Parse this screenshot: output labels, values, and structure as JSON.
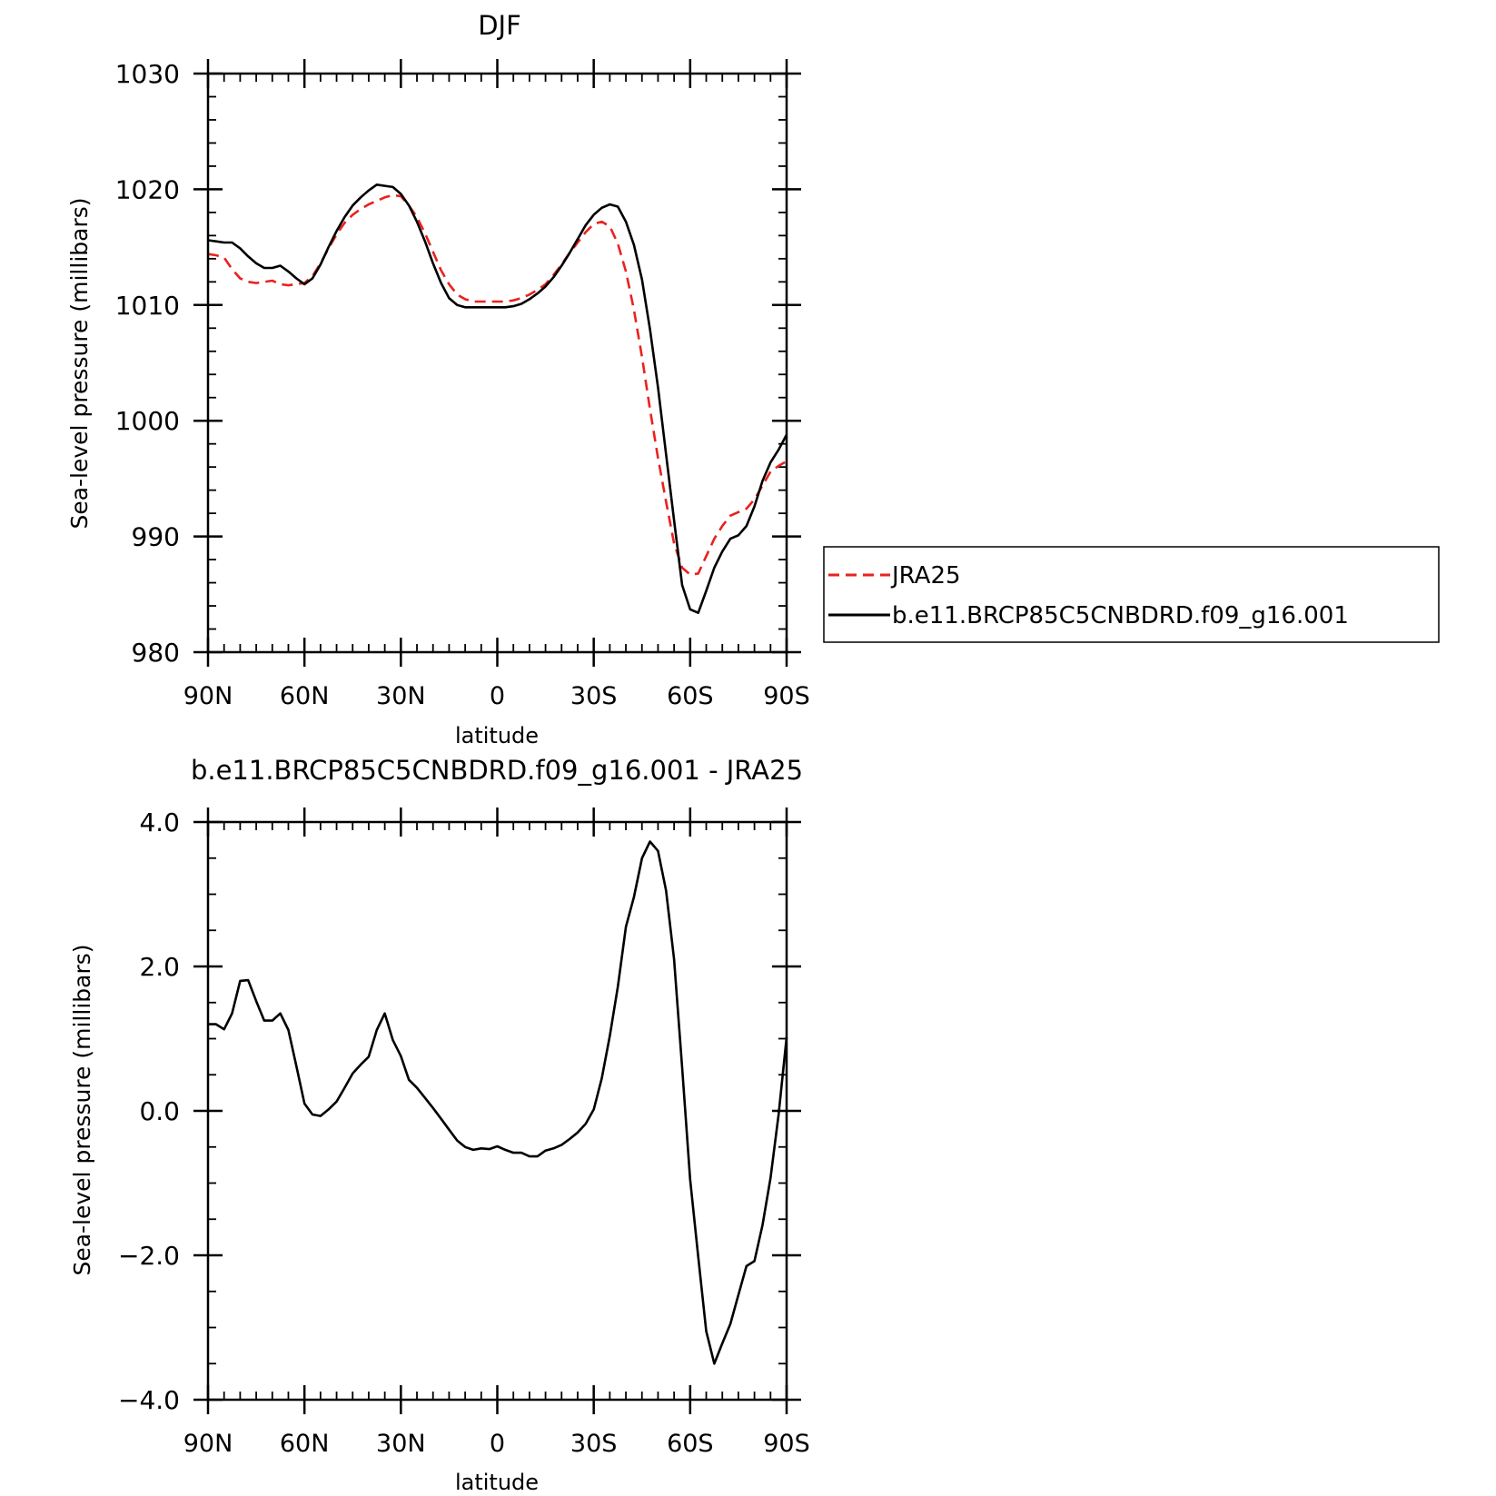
{
  "chart_data": [
    {
      "type": "line",
      "title": "DJF",
      "xlabel": "latitude",
      "ylabel": "Sea-level pressure (millibars)",
      "x_reversed": true,
      "xlim": [
        90,
        -90
      ],
      "ylim": [
        980,
        1030
      ],
      "x_ticks": [
        90,
        60,
        30,
        0,
        -30,
        -60,
        -90
      ],
      "x_tick_labels": [
        "90N",
        "60N",
        "30N",
        "0",
        "30S",
        "60S",
        "90S"
      ],
      "y_ticks": [
        980,
        990,
        1000,
        1010,
        1020,
        1030
      ],
      "y_tick_labels": [
        "980",
        "990",
        "1000",
        "1010",
        "1020",
        "1030"
      ],
      "legend": "right",
      "x": [
        90,
        87.5,
        85,
        82.5,
        80,
        77.5,
        75,
        72.5,
        70,
        67.5,
        65,
        62.5,
        60,
        57.5,
        55,
        52.5,
        50,
        47.5,
        45,
        42.5,
        40,
        37.5,
        35,
        32.5,
        30,
        27.5,
        25,
        22.5,
        20,
        17.5,
        15,
        12.5,
        10,
        7.5,
        5,
        2.5,
        0,
        -2.5,
        -5,
        -7.5,
        -10,
        -12.5,
        -15,
        -17.5,
        -20,
        -22.5,
        -25,
        -27.5,
        -30,
        -32.5,
        -35,
        -37.5,
        -40,
        -42.5,
        -45,
        -47.5,
        -50,
        -52.5,
        -55,
        -57.5,
        -60,
        -62.5,
        -65,
        -67.5,
        -70,
        -72.5,
        -75,
        -77.5,
        -80,
        -82.5,
        -85,
        -87.5,
        -90
      ],
      "series": [
        {
          "name": "JRA25",
          "color": "#e8221f",
          "dash": "dashed",
          "values": [
            1014.4,
            1014.3,
            1014.1,
            1013.1,
            1012.3,
            1012.0,
            1011.9,
            1012.0,
            1012.1,
            1011.8,
            1011.7,
            1011.8,
            1011.9,
            1012.5,
            1013.6,
            1014.9,
            1016.1,
            1017.1,
            1017.8,
            1018.3,
            1018.7,
            1019.0,
            1019.3,
            1019.5,
            1019.4,
            1018.6,
            1017.6,
            1016.2,
            1014.6,
            1013.0,
            1011.8,
            1010.9,
            1010.5,
            1010.3,
            1010.3,
            1010.3,
            1010.3,
            1010.3,
            1010.4,
            1010.6,
            1010.9,
            1011.3,
            1011.8,
            1012.6,
            1013.5,
            1014.5,
            1015.4,
            1016.3,
            1017.0,
            1017.2,
            1016.8,
            1015.3,
            1012.9,
            1009.6,
            1005.5,
            1001.0,
            996.8,
            993.0,
            989.4,
            987.3,
            986.7,
            986.8,
            988.3,
            989.8,
            990.9,
            991.8,
            992.1,
            992.4,
            993.2,
            994.4,
            995.6,
            996.1,
            996.5
          ]
        },
        {
          "name": "b.e11.BRCP85C5CNBDRD.f09_g16.001",
          "color": "#000000",
          "dash": "solid",
          "values": [
            1015.6,
            1015.5,
            1015.4,
            1015.4,
            1014.9,
            1014.2,
            1013.6,
            1013.2,
            1013.2,
            1013.4,
            1012.9,
            1012.3,
            1011.8,
            1012.3,
            1013.5,
            1015.0,
            1016.4,
            1017.6,
            1018.6,
            1019.3,
            1019.9,
            1020.4,
            1020.3,
            1020.2,
            1019.6,
            1018.6,
            1017.2,
            1015.5,
            1013.6,
            1011.9,
            1010.6,
            1010.0,
            1009.8,
            1009.8,
            1009.8,
            1009.8,
            1009.8,
            1009.8,
            1009.9,
            1010.1,
            1010.5,
            1011.0,
            1011.6,
            1012.4,
            1013.4,
            1014.5,
            1015.7,
            1016.9,
            1017.8,
            1018.4,
            1018.7,
            1018.5,
            1017.2,
            1015.2,
            1012.2,
            1007.9,
            1002.9,
            997.1,
            991.4,
            985.8,
            983.7,
            983.4,
            985.3,
            987.3,
            988.7,
            989.8,
            990.1,
            990.9,
            992.6,
            994.8,
            996.4,
            997.5,
            998.8
          ]
        }
      ]
    },
    {
      "type": "line",
      "title": "b.e11.BRCP85C5CNBDRD.f09_g16.001 - JRA25",
      "xlabel": "latitude",
      "ylabel": "Sea-level pressure (millibars)",
      "x_reversed": true,
      "xlim": [
        90,
        -90
      ],
      "ylim": [
        -4,
        4
      ],
      "x_ticks": [
        90,
        60,
        30,
        0,
        -30,
        -60,
        -90
      ],
      "x_tick_labels": [
        "90N",
        "60N",
        "30N",
        "0",
        "30S",
        "60S",
        "90S"
      ],
      "y_ticks": [
        -4,
        -2,
        0,
        2,
        4
      ],
      "y_tick_labels": [
        "−4.0",
        "−2.0",
        "0.0",
        "2.0",
        "4.0"
      ],
      "x": [
        90,
        87.5,
        85,
        82.5,
        80,
        77.5,
        75,
        72.5,
        70,
        67.5,
        65,
        62.5,
        60,
        57.5,
        55,
        52.5,
        50,
        47.5,
        45,
        42.5,
        40,
        37.5,
        35,
        32.5,
        30,
        27.5,
        25,
        22.5,
        20,
        17.5,
        15,
        12.5,
        10,
        7.5,
        5,
        2.5,
        0,
        -2.5,
        -5,
        -7.5,
        -10,
        -12.5,
        -15,
        -17.5,
        -20,
        -22.5,
        -25,
        -27.5,
        -30,
        -32.5,
        -35,
        -37.5,
        -40,
        -42.5,
        -45,
        -47.5,
        -50,
        -52.5,
        -55,
        -57.5,
        -60,
        -62.5,
        -65,
        -67.5,
        -70,
        -72.5,
        -75,
        -77.5,
        -80,
        -82.5,
        -85,
        -87.5,
        -90
      ],
      "series": [
        {
          "color": "#000000",
          "dash": "solid",
          "values": [
            1.2,
            1.2,
            1.13,
            1.35,
            1.8,
            1.81,
            1.52,
            1.25,
            1.25,
            1.35,
            1.12,
            0.62,
            0.1,
            -0.05,
            -0.07,
            0.02,
            0.13,
            0.32,
            0.52,
            0.64,
            0.75,
            1.12,
            1.35,
            0.98,
            0.76,
            0.43,
            0.32,
            0.18,
            0.04,
            -0.11,
            -0.26,
            -0.41,
            -0.5,
            -0.54,
            -0.52,
            -0.53,
            -0.49,
            -0.54,
            -0.58,
            -0.58,
            -0.63,
            -0.63,
            -0.55,
            -0.52,
            -0.47,
            -0.39,
            -0.3,
            -0.18,
            0.02,
            0.45,
            1.04,
            1.72,
            2.55,
            2.96,
            3.5,
            3.73,
            3.6,
            3.05,
            2.1,
            0.6,
            -0.95,
            -2.02,
            -3.05,
            -3.5,
            -3.22,
            -2.95,
            -2.55,
            -2.15,
            -2.08,
            -1.58,
            -0.93,
            -0.05,
            1.02
          ]
        }
      ]
    }
  ]
}
